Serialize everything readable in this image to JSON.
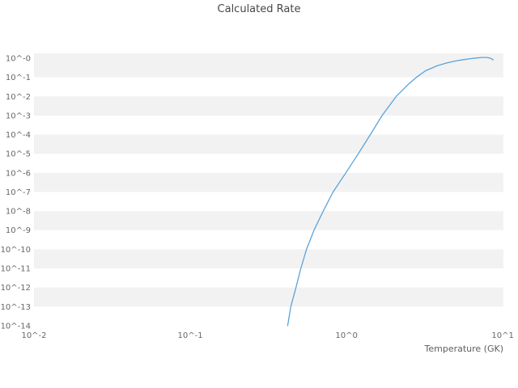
{
  "chart_data": {
    "type": "line",
    "title": "Calculated Rate",
    "xlabel": "Temperature (GK)",
    "ylabel": "",
    "xscale": "log",
    "yscale": "log",
    "xlim": [
      0.01,
      10.1
    ],
    "ylim": [
      9e-15,
      1.8
    ],
    "x_ticks": [
      0.01,
      0.1,
      1,
      10
    ],
    "x_ticklabels": [
      "10^-2",
      "10^-1",
      "10^0",
      "10^1"
    ],
    "y_tick_exponents": [
      0,
      -1,
      -2,
      -3,
      -4,
      -5,
      -6,
      -7,
      -8,
      -9,
      -10,
      -11,
      -12,
      -13,
      -14
    ],
    "y_ticklabels": [
      "10^-0",
      "10^-1",
      "10^-2",
      "10^-3",
      "10^-4",
      "10^-5",
      "10^-6",
      "10^-7",
      "10^-8",
      "10^-9",
      "10^-10",
      "10^-11",
      "10^-12",
      "10^-13",
      "10^-14"
    ],
    "grid_band_color": "#f2f2f2",
    "background_color": "#ffffff",
    "legend": "none",
    "series": [
      {
        "name": "calculated-rate",
        "color": "#5ba3d9",
        "x": [
          0.42,
          0.44,
          0.475,
          0.51,
          0.555,
          0.62,
          0.71,
          0.82,
          0.99,
          1.19,
          1.42,
          1.69,
          2.08,
          2.5,
          2.8,
          3.2,
          3.8,
          4.4,
          5.0,
          5.6,
          6.2,
          6.8,
          7.4,
          7.9,
          8.3,
          8.7
        ],
        "y": [
          1e-14,
          1e-13,
          1e-12,
          1e-11,
          1e-10,
          1e-09,
          1e-08,
          1e-07,
          1e-06,
          1e-05,
          0.0001,
          0.001,
          0.01,
          0.045,
          0.1,
          0.22,
          0.4,
          0.57,
          0.72,
          0.84,
          0.95,
          1.03,
          1.09,
          1.09,
          1.02,
          0.82
        ]
      }
    ]
  }
}
